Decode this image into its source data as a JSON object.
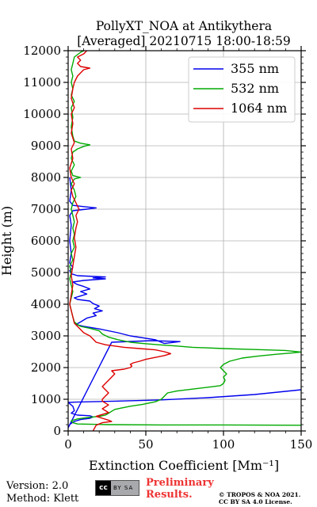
{
  "title_line1": "PollyXT_NOA at Antikythera",
  "title_line2": "[Averaged] 20210715 18:00-18:59",
  "footer": {
    "version": "Version: 2.0",
    "method": "Method: Klett",
    "cc_badge": "cc",
    "cc_sub": "BY SA",
    "preliminary_line1": "Preliminary",
    "preliminary_line2": "Results.",
    "copyright_line1": "© TROPOS & NOA 2021.",
    "copyright_line2": "CC BY SA 4.0 License."
  },
  "chart_data": {
    "type": "line",
    "xlabel": "Extinction Coefficient [Mm⁻¹]",
    "ylabel": "Height (m)",
    "xlim": [
      0,
      150
    ],
    "ylim": [
      0,
      12000
    ],
    "x_ticks": [
      0,
      50,
      100,
      150
    ],
    "y_ticks": [
      0,
      1000,
      2000,
      3000,
      4000,
      5000,
      6000,
      7000,
      8000,
      9000,
      10000,
      11000,
      12000
    ],
    "grid": true,
    "legend_position": "top-right",
    "series": [
      {
        "name": "355 nm",
        "color": "#0000ee",
        "points": [
          [
            150,
            1300
          ],
          [
            120,
            1150
          ],
          [
            90,
            1050
          ],
          [
            60,
            980
          ],
          [
            30,
            940
          ],
          [
            5,
            910
          ],
          [
            0,
            900
          ],
          [
            3,
            780
          ],
          [
            4,
            640
          ],
          [
            2,
            560
          ],
          [
            6,
            500
          ],
          [
            14,
            480
          ],
          [
            16,
            440
          ],
          [
            14,
            400
          ],
          [
            8,
            360
          ],
          [
            4,
            300
          ],
          [
            2,
            240
          ],
          [
            1,
            200
          ],
          [
            0,
            100
          ],
          [
            28,
            2800
          ],
          [
            54,
            2850
          ],
          [
            72,
            2820
          ],
          [
            62,
            2760
          ],
          [
            56,
            2880
          ],
          [
            40,
            3000
          ],
          [
            32,
            3100
          ],
          [
            20,
            3220
          ],
          [
            10,
            3300
          ],
          [
            5,
            3360
          ],
          [
            8,
            3440
          ],
          [
            10,
            3500
          ],
          [
            12,
            3560
          ],
          [
            18,
            3640
          ],
          [
            16,
            3720
          ],
          [
            22,
            3790
          ],
          [
            17,
            3860
          ],
          [
            20,
            3940
          ],
          [
            16,
            4020
          ],
          [
            14,
            4100
          ],
          [
            6,
            4150
          ],
          [
            4,
            4200
          ],
          [
            8,
            4260
          ],
          [
            12,
            4320
          ],
          [
            8,
            4400
          ],
          [
            14,
            4480
          ],
          [
            10,
            4560
          ],
          [
            6,
            4620
          ],
          [
            3,
            4700
          ],
          [
            10,
            4750
          ],
          [
            24,
            4800
          ],
          [
            16,
            4830
          ],
          [
            24,
            4860
          ],
          [
            6,
            4900
          ],
          [
            2,
            4960
          ],
          [
            1,
            5060
          ],
          [
            3,
            5160
          ],
          [
            1,
            5300
          ],
          [
            2,
            5600
          ],
          [
            1,
            6000
          ],
          [
            2,
            6500
          ],
          [
            1,
            6800
          ],
          [
            3,
            6950
          ],
          [
            12,
            7000
          ],
          [
            18,
            7040
          ],
          [
            10,
            7080
          ],
          [
            3,
            7120
          ],
          [
            1,
            7250
          ],
          [
            2,
            7600
          ],
          [
            1,
            8000
          ]
        ]
      },
      {
        "name": "532 nm",
        "color": "#00aa00",
        "points": [
          [
            150,
            180
          ],
          [
            100,
            190
          ],
          [
            60,
            190
          ],
          [
            25,
            200
          ],
          [
            6,
            220
          ],
          [
            3,
            260
          ],
          [
            2,
            320
          ],
          [
            6,
            380
          ],
          [
            12,
            420
          ],
          [
            20,
            460
          ],
          [
            24,
            500
          ],
          [
            26,
            560
          ],
          [
            28,
            620
          ],
          [
            30,
            680
          ],
          [
            34,
            720
          ],
          [
            40,
            780
          ],
          [
            48,
            840
          ],
          [
            56,
            920
          ],
          [
            60,
            1000
          ],
          [
            62,
            1100
          ],
          [
            64,
            1200
          ],
          [
            70,
            1260
          ],
          [
            80,
            1320
          ],
          [
            90,
            1380
          ],
          [
            98,
            1430
          ],
          [
            100,
            1500
          ],
          [
            101,
            1600
          ],
          [
            100,
            1700
          ],
          [
            102,
            1800
          ],
          [
            100,
            1900
          ],
          [
            98,
            2000
          ],
          [
            100,
            2100
          ],
          [
            104,
            2200
          ],
          [
            112,
            2300
          ],
          [
            122,
            2360
          ],
          [
            134,
            2420
          ],
          [
            144,
            2460
          ],
          [
            150,
            2490
          ],
          [
            140,
            2540
          ],
          [
            120,
            2570
          ],
          [
            100,
            2600
          ],
          [
            80,
            2640
          ],
          [
            70,
            2680
          ],
          [
            58,
            2720
          ],
          [
            48,
            2760
          ],
          [
            40,
            2800
          ],
          [
            32,
            2880
          ],
          [
            26,
            2960
          ],
          [
            22,
            3060
          ],
          [
            20,
            3160
          ],
          [
            14,
            3240
          ],
          [
            8,
            3300
          ],
          [
            6,
            3360
          ],
          [
            4,
            3440
          ],
          [
            3,
            3600
          ],
          [
            2,
            3800
          ],
          [
            1,
            4000
          ],
          [
            2,
            4200
          ],
          [
            3,
            4400
          ],
          [
            2,
            4600
          ],
          [
            1,
            4800
          ],
          [
            2,
            5000
          ],
          [
            1,
            5200
          ],
          [
            3,
            5400
          ],
          [
            2,
            5600
          ],
          [
            4,
            5800
          ],
          [
            3,
            6000
          ],
          [
            4,
            6200
          ],
          [
            3,
            6400
          ],
          [
            4,
            6600
          ],
          [
            3,
            6800
          ],
          [
            2,
            7000
          ],
          [
            3,
            7200
          ],
          [
            5,
            7400
          ],
          [
            4,
            7600
          ],
          [
            2,
            7800
          ],
          [
            4,
            7950
          ],
          [
            8,
            8000
          ],
          [
            3,
            8060
          ],
          [
            2,
            8200
          ],
          [
            4,
            8400
          ],
          [
            2,
            8600
          ],
          [
            3,
            8800
          ],
          [
            6,
            8900
          ],
          [
            10,
            8980
          ],
          [
            14,
            9030
          ],
          [
            8,
            9080
          ],
          [
            4,
            9150
          ],
          [
            3,
            9300
          ],
          [
            2,
            9600
          ],
          [
            3,
            9900
          ],
          [
            2,
            10200
          ],
          [
            4,
            10400
          ],
          [
            2,
            10600
          ],
          [
            3,
            10800
          ],
          [
            2,
            11000
          ],
          [
            3,
            11200
          ],
          [
            2,
            11400
          ],
          [
            3,
            11600
          ],
          [
            4,
            11800
          ],
          [
            8,
            11950
          ],
          [
            10,
            12000
          ]
        ]
      },
      {
        "name": "1064 nm",
        "color": "#dd0000",
        "points": [
          [
            16,
            0
          ],
          [
            18,
            180
          ],
          [
            22,
            260
          ],
          [
            28,
            300
          ],
          [
            26,
            340
          ],
          [
            22,
            400
          ],
          [
            18,
            460
          ],
          [
            22,
            520
          ],
          [
            26,
            580
          ],
          [
            24,
            640
          ],
          [
            22,
            700
          ],
          [
            24,
            760
          ],
          [
            26,
            820
          ],
          [
            24,
            880
          ],
          [
            22,
            940
          ],
          [
            22,
            1000
          ],
          [
            24,
            1100
          ],
          [
            26,
            1200
          ],
          [
            24,
            1300
          ],
          [
            22,
            1400
          ],
          [
            24,
            1500
          ],
          [
            26,
            1600
          ],
          [
            28,
            1700
          ],
          [
            30,
            1800
          ],
          [
            28,
            1900
          ],
          [
            36,
            1950
          ],
          [
            40,
            2000
          ],
          [
            41,
            2050
          ],
          [
            40,
            2100
          ],
          [
            42,
            2150
          ],
          [
            46,
            2200
          ],
          [
            50,
            2260
          ],
          [
            56,
            2320
          ],
          [
            62,
            2380
          ],
          [
            66,
            2440
          ],
          [
            62,
            2500
          ],
          [
            56,
            2560
          ],
          [
            46,
            2600
          ],
          [
            36,
            2640
          ],
          [
            24,
            2720
          ],
          [
            18,
            2800
          ],
          [
            16,
            2900
          ],
          [
            14,
            3000
          ],
          [
            10,
            3100
          ],
          [
            8,
            3200
          ],
          [
            6,
            3300
          ],
          [
            4,
            3400
          ],
          [
            3,
            3600
          ],
          [
            2,
            3800
          ],
          [
            1,
            4000
          ],
          [
            2,
            4300
          ],
          [
            3,
            4600
          ],
          [
            2,
            4900
          ],
          [
            3,
            5200
          ],
          [
            4,
            5500
          ],
          [
            5,
            5800
          ],
          [
            4,
            6100
          ],
          [
            5,
            6400
          ],
          [
            6,
            6600
          ],
          [
            5,
            6800
          ],
          [
            7,
            7000
          ],
          [
            5,
            7200
          ],
          [
            3,
            7400
          ],
          [
            2,
            7600
          ],
          [
            4,
            7800
          ],
          [
            2,
            8000
          ],
          [
            1,
            8300
          ],
          [
            3,
            8600
          ],
          [
            2,
            8900
          ],
          [
            4,
            9100
          ],
          [
            2,
            9400
          ],
          [
            3,
            9700
          ],
          [
            2,
            10000
          ],
          [
            4,
            10200
          ],
          [
            2,
            10500
          ],
          [
            3,
            10800
          ],
          [
            4,
            11000
          ],
          [
            6,
            11200
          ],
          [
            8,
            11300
          ],
          [
            10,
            11400
          ],
          [
            14,
            11450
          ],
          [
            8,
            11500
          ],
          [
            6,
            11600
          ],
          [
            8,
            11700
          ],
          [
            6,
            11800
          ],
          [
            10,
            11900
          ],
          [
            12,
            12000
          ]
        ]
      }
    ]
  }
}
